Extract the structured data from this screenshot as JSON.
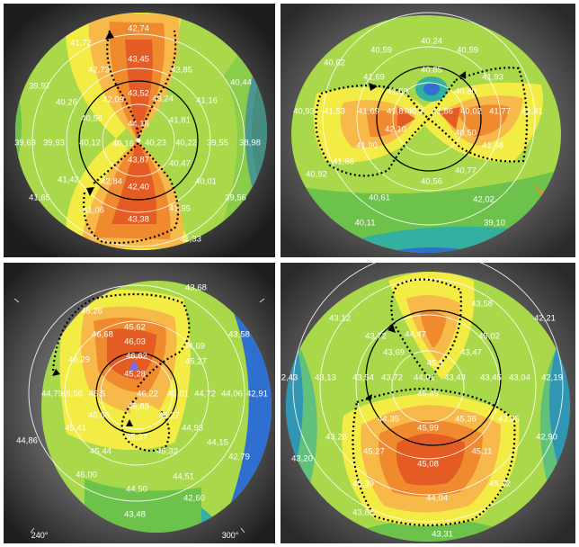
{
  "figure": {
    "palette": {
      "iris_dark": "#2b2b2b",
      "iris_mid": "#6e6e6e",
      "blue": "#2f6fd0",
      "teal": "#33b0a0",
      "green": "#6cc24a",
      "light_green": "#a9d84a",
      "yellow": "#f3ec45",
      "light_orange": "#f6b94a",
      "orange": "#f08a2e",
      "red_orange": "#e45b24",
      "marker": "#7b6df0"
    },
    "panels": [
      {
        "id": "tl",
        "labels": [
          "42,74",
          "43,45",
          "42,73",
          "43,85",
          "43,52",
          "43,24",
          "41,72",
          "41,16",
          "40,44",
          "39,97",
          "40,26",
          "42,09",
          "40,56",
          "44,16",
          "41,81",
          "39,69",
          "39,93",
          "40,12",
          "40,16",
          "40,23",
          "40,22",
          "39,55",
          "38,98",
          "43,87",
          "40,47",
          "41,42",
          "42,84",
          "40,01",
          "42,40",
          "41,65",
          "41,06",
          "43,38",
          "41,95",
          "39,56",
          "41,33"
        ]
      },
      {
        "id": "tr",
        "labels": [
          "40,24",
          "40,59",
          "40,59",
          "40,62",
          "40,85",
          "41,69",
          "41,93",
          "41,50",
          "40,80",
          "40,93",
          "41,53",
          "41,69",
          "41,87",
          "40,2",
          "41,86",
          "40,02",
          "41,77",
          "41,41",
          "42,10",
          "40,50",
          "41,90",
          "41,48",
          "41,66",
          "40,77",
          "40,92",
          "40,56",
          "40,61",
          "42,02",
          "40,11",
          "39,10"
        ]
      },
      {
        "id": "bl",
        "labels": [
          "43,68",
          "45,26",
          "45,62",
          "43,58",
          "46,68",
          "46,03",
          "44,69",
          "46,29",
          "46,62",
          "45,27",
          "44,79",
          "45,56",
          "45,5",
          "46,22",
          "45,01",
          "44,72",
          "44,06",
          "42,91",
          "45,28",
          "45,66",
          "45,83",
          "44,93",
          "45,41",
          "46,27",
          "45,32",
          "44,15",
          "44,86",
          "45,44",
          "45,37",
          "42,79",
          "46,00",
          "44,51",
          "44,50",
          "42,60",
          "43,48"
        ],
        "degree_labels": [
          "240°",
          "300°"
        ]
      },
      {
        "id": "br",
        "labels": [
          "43,58",
          "43,12",
          "42,21",
          "44,47",
          "43,72",
          "45,02",
          "43,69",
          "43,47",
          "45,1",
          "2,43",
          "43,13",
          "43,54",
          "43,72",
          "44,01",
          "43,43",
          "43,45",
          "43,04",
          "42,19",
          "45,49",
          "44,35",
          "45,36",
          "43,65",
          "43,26",
          "45,99",
          "42,90",
          "45,27",
          "45,11",
          "43,20",
          "45,08",
          "45,39",
          "45,22",
          "44,04",
          "43,63",
          "43,31"
        ]
      }
    ]
  }
}
